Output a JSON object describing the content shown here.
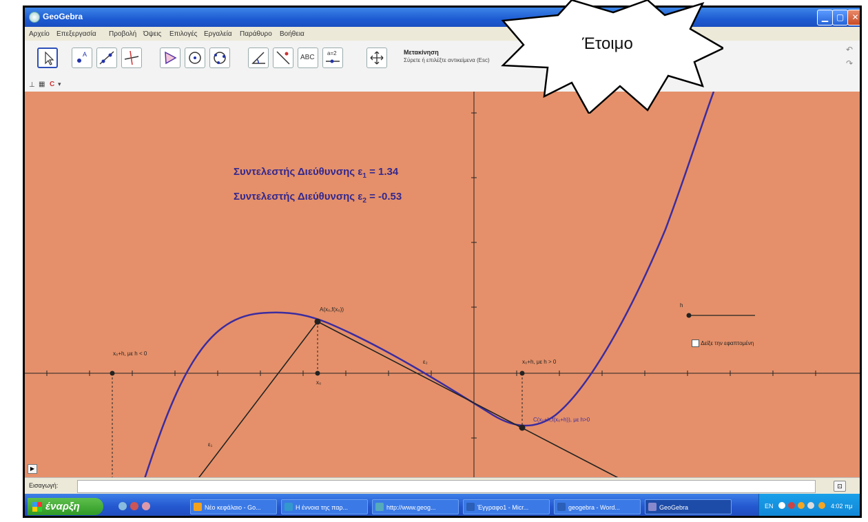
{
  "window": {
    "title": "GeoGebra"
  },
  "menu": {
    "items": [
      "Αρχείο",
      "Επεξεργασία",
      "Προβολή",
      "Όψεις",
      "Επιλογές",
      "Εργαλεία",
      "Παράθυρο",
      "Βοήθεια"
    ]
  },
  "toolbar": {
    "active_tool_name": "Μετακίνηση",
    "active_tool_help": "Σύρετε ή επιλέξτε αντικείμενα (Esc)",
    "text_tool_label": "ABC",
    "slider_tool_label": "a=2"
  },
  "graphics": {
    "slope_label_1": "Συντελεστής Διεύθυνσης ε",
    "slope_label_1_sub": "1",
    "slope_label_1_value": " = 1.34",
    "slope_label_2": "Συντελεστής Διεύθυνσης ε",
    "slope_label_2_sub": "2",
    "slope_label_2_value": " = -0.53",
    "point_a_label": "A(x₀,f(x₀))",
    "point_c_label": "C(x₀+h,f(x₀+h)), με h>0",
    "x0_label": "x₀",
    "left_label": "x₀+h, με h < 0",
    "right_label": "x₀+h, με h > 0",
    "line_e1_label": "ε₁",
    "line_e2_label": "ε₂",
    "slider_label": "h",
    "checkbox_label": "Δείξε την εφαπτομένη"
  },
  "input_bar": {
    "label": "Εισαγωγή:"
  },
  "taskbar": {
    "start_label": "έναρξη",
    "tasks": [
      "Νέο κεφάλαιο - Go...",
      "Η έννοια της παρ...",
      "http://www.geog...",
      "Έγγραφο1 - Micr...",
      "geogebra - Word...",
      "GeoGebra"
    ],
    "active_task_index": 5,
    "language": "EN",
    "clock": "4:02 πμ"
  },
  "callout": {
    "text": "Έτοιμο"
  },
  "colors": {
    "graphics_background": "#e5906a",
    "curve": "#3b2ca0",
    "text_accent": "#33288f",
    "titlebar": "#1d5bd2"
  }
}
